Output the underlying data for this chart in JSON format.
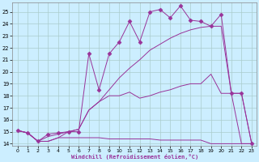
{
  "xlabel": "Windchill (Refroidissement éolien,°C)",
  "background_color": "#cceeff",
  "grid_color": "#aacccc",
  "line_color": "#993399",
  "xlim": [
    -0.5,
    23.5
  ],
  "ylim": [
    13.8,
    25.8
  ],
  "yticks": [
    14,
    15,
    16,
    17,
    18,
    19,
    20,
    21,
    22,
    23,
    24,
    25
  ],
  "xticks": [
    0,
    1,
    2,
    3,
    4,
    5,
    6,
    7,
    8,
    9,
    10,
    11,
    12,
    13,
    14,
    15,
    16,
    17,
    18,
    19,
    20,
    21,
    22,
    23
  ],
  "series": [
    {
      "x": [
        0,
        1,
        2,
        3,
        4,
        5,
        6,
        7,
        8,
        9,
        10,
        11,
        12,
        13,
        14,
        15,
        16,
        17,
        18,
        19,
        20,
        21,
        22,
        23
      ],
      "y": [
        15.1,
        14.9,
        14.2,
        14.8,
        14.9,
        15.0,
        15.0,
        21.5,
        18.5,
        21.5,
        22.5,
        24.2,
        22.5,
        25.0,
        25.2,
        24.5,
        25.5,
        24.3,
        24.2,
        23.8,
        24.8,
        18.2,
        18.2,
        14.0
      ],
      "marker": "D",
      "markersize": 2.5
    },
    {
      "x": [
        0,
        1,
        2,
        3,
        4,
        5,
        6,
        7,
        8,
        9,
        10,
        11,
        12,
        13,
        14,
        15,
        16,
        17,
        18,
        19,
        20,
        21,
        22,
        23
      ],
      "y": [
        15.1,
        14.9,
        14.2,
        14.6,
        14.8,
        15.0,
        15.2,
        16.8,
        17.5,
        18.5,
        19.5,
        20.3,
        21.0,
        21.8,
        22.3,
        22.8,
        23.2,
        23.5,
        23.7,
        23.8,
        23.8,
        18.2,
        18.2,
        14.0
      ],
      "marker": null,
      "markersize": 0
    },
    {
      "x": [
        0,
        1,
        2,
        3,
        4,
        5,
        6,
        7,
        8,
        9,
        10,
        11,
        12,
        13,
        14,
        15,
        16,
        17,
        18,
        19,
        20,
        21,
        22,
        23
      ],
      "y": [
        15.1,
        14.9,
        14.2,
        14.2,
        14.5,
        15.0,
        15.2,
        16.8,
        17.5,
        18.0,
        18.0,
        18.3,
        17.8,
        18.0,
        18.3,
        18.5,
        18.8,
        19.0,
        19.0,
        19.8,
        18.2,
        18.2,
        14.0,
        14.0
      ],
      "marker": null,
      "markersize": 0
    },
    {
      "x": [
        0,
        1,
        2,
        3,
        4,
        5,
        6,
        7,
        8,
        9,
        10,
        11,
        12,
        13,
        14,
        15,
        16,
        17,
        18,
        19,
        20,
        21,
        22,
        23
      ],
      "y": [
        15.1,
        14.9,
        14.2,
        14.2,
        14.5,
        14.5,
        14.5,
        14.5,
        14.5,
        14.4,
        14.4,
        14.4,
        14.4,
        14.4,
        14.3,
        14.3,
        14.3,
        14.3,
        14.3,
        14.0,
        14.0,
        14.0,
        14.0,
        14.0
      ],
      "marker": null,
      "markersize": 0
    }
  ]
}
